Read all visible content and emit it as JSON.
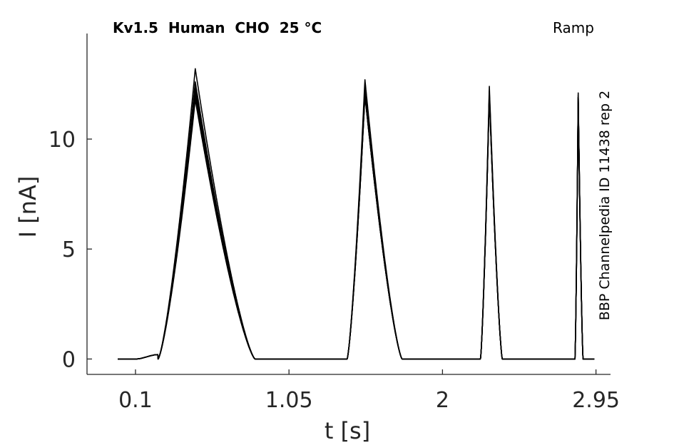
{
  "chart_data": {
    "type": "line",
    "title": "Kv1.5  Human  CHO  25 °C",
    "protocol": "Ramp",
    "side_note": "BBP Channelpedia ID 11438 rep 2",
    "xlabel": "t [s]",
    "ylabel": "I [nA]",
    "xlim": [
      -0.2,
      3.04
    ],
    "ylim": [
      -0.7,
      14.8
    ],
    "xticks": [
      0.1,
      1.05,
      2,
      2.95
    ],
    "xtick_labels": [
      "0.1",
      "1.05",
      "2",
      "2.95"
    ],
    "yticks": [
      0,
      5,
      10
    ],
    "ytick_labels": [
      "0",
      "5",
      "10"
    ],
    "grid": false,
    "line_color": "#000000",
    "peaks": [
      {
        "t": 0.47,
        "start": 0.24,
        "end": 0.84,
        "heights": [
          13.2,
          12.6,
          12.4,
          12.2,
          12.0,
          11.8
        ]
      },
      {
        "t": 1.52,
        "start": 1.41,
        "end": 1.75,
        "heights": [
          12.7,
          12.4,
          12.2,
          12.0
        ]
      },
      {
        "t": 2.29,
        "start": 2.235,
        "end": 2.37,
        "heights": [
          12.4,
          12.2,
          12.0
        ]
      },
      {
        "t": 2.84,
        "start": 2.82,
        "end": 2.87,
        "heights": [
          12.1,
          12.0,
          11.9
        ]
      }
    ],
    "x_start": -0.01,
    "x_end": 2.94,
    "baseline": 0.0
  }
}
